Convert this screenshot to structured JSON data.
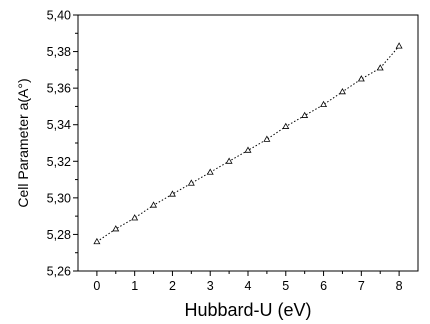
{
  "chart_data": {
    "type": "line",
    "xlabel": "Hubbard-U (eV)",
    "ylabel": "Cell Parameter  a(A°)",
    "xlim": [
      -0.5,
      8.5
    ],
    "ylim": [
      5.26,
      5.4
    ],
    "x_ticks": [
      "0",
      "1",
      "2",
      "3",
      "4",
      "5",
      "6",
      "7",
      "8"
    ],
    "y_ticks": [
      "5,26",
      "5,28",
      "5,30",
      "5,32",
      "5,34",
      "5,36",
      "5,38",
      "5,40"
    ],
    "x_tick_values": [
      0,
      1,
      2,
      3,
      4,
      5,
      6,
      7,
      8
    ],
    "y_tick_values": [
      5.26,
      5.28,
      5.3,
      5.32,
      5.34,
      5.36,
      5.38,
      5.4
    ],
    "line_style": "dotted",
    "marker": "open-triangle",
    "color": "#000000",
    "grid": false,
    "series": [
      {
        "x": [
          0,
          0.5,
          1,
          1.5,
          2,
          2.5,
          3,
          3.5,
          4,
          4.5,
          5,
          5.5,
          6,
          6.5,
          7,
          7.5,
          8
        ],
        "y": [
          5.276,
          5.283,
          5.289,
          5.296,
          5.302,
          5.308,
          5.314,
          5.32,
          5.326,
          5.332,
          5.339,
          5.345,
          5.351,
          5.358,
          5.365,
          5.371,
          5.383
        ]
      }
    ]
  }
}
